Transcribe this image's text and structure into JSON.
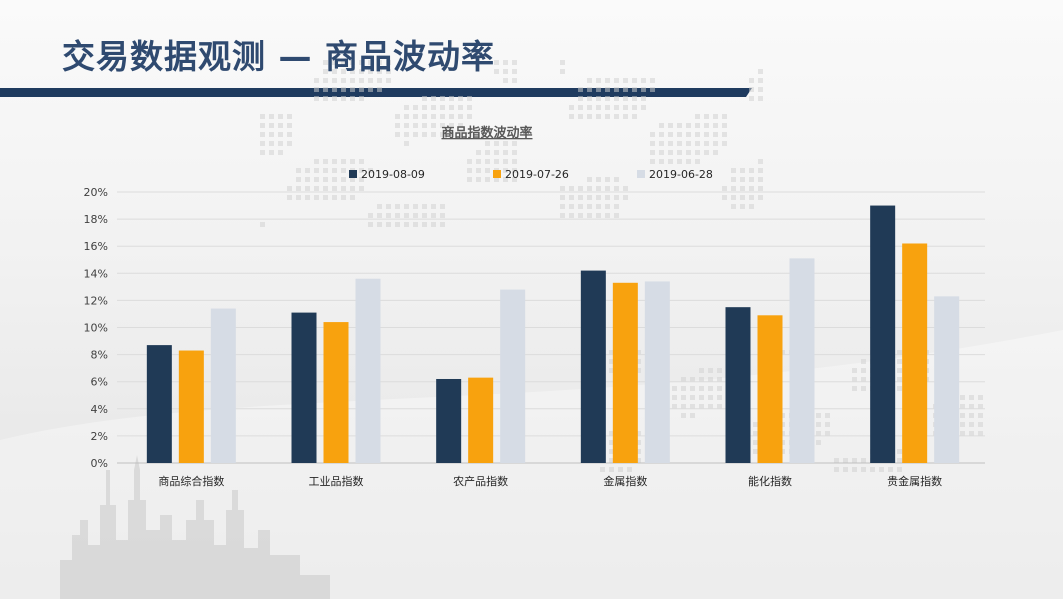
{
  "slide": {
    "title": "交易数据观测 — 商品波动率"
  },
  "colors": {
    "accent_navy": "#1f3b5f",
    "series": [
      "#203a56",
      "#f8a20e",
      "#d6dce5"
    ]
  },
  "chart_data": {
    "type": "bar",
    "title": "商品指数波动率",
    "categories": [
      "商品综合指数",
      "工业品指数",
      "农产品指数",
      "金属指数",
      "能化指数",
      "贵金属指数"
    ],
    "series": [
      {
        "name": "2019-08-09",
        "values": [
          8.7,
          11.1,
          6.2,
          14.2,
          11.5,
          19.0
        ]
      },
      {
        "name": "2019-07-26",
        "values": [
          8.3,
          10.4,
          6.3,
          13.3,
          10.9,
          16.2
        ]
      },
      {
        "name": "2019-06-28",
        "values": [
          11.4,
          13.6,
          12.8,
          13.4,
          15.1,
          12.3
        ]
      }
    ],
    "ylim": [
      0,
      20
    ],
    "yticks": [
      "0%",
      "2%",
      "4%",
      "6%",
      "8%",
      "10%",
      "12%",
      "14%",
      "16%",
      "18%",
      "20%"
    ],
    "grid": true,
    "legend": "top-center"
  }
}
